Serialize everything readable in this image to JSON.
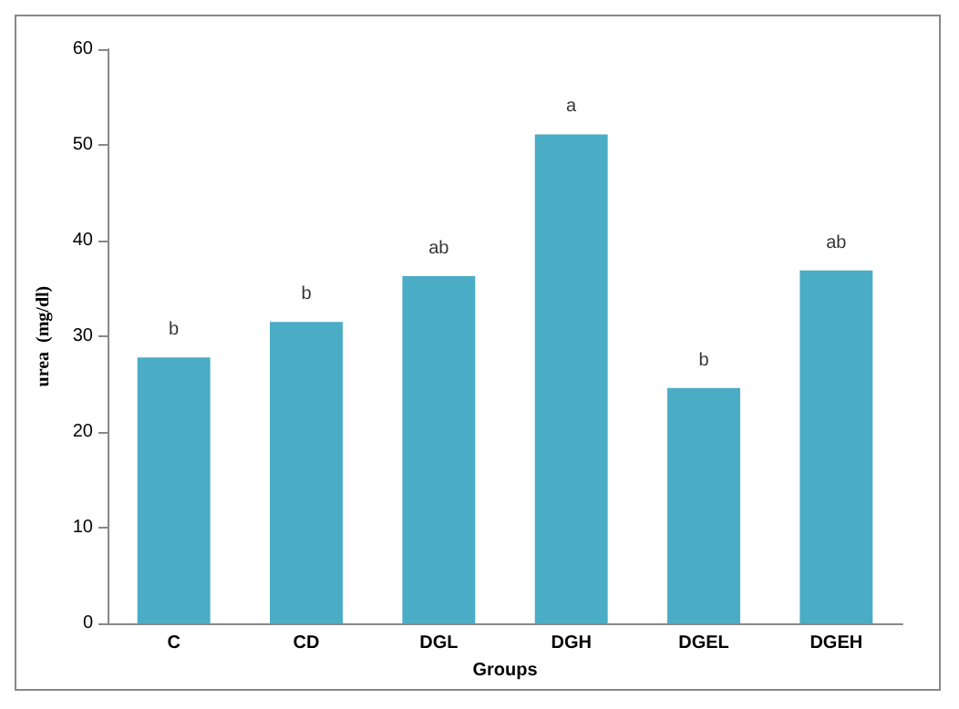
{
  "chart_data": {
    "type": "bar",
    "xlabel": "Groups",
    "ylabel": "urea  (mg/dl)",
    "categories": [
      "C",
      "CD",
      "DGL",
      "DGH",
      "DGEL",
      "DGEH"
    ],
    "values": [
      27.8,
      31.5,
      36.3,
      51.1,
      24.6,
      36.9
    ],
    "color": "#4bacc6",
    "ylim": [
      0,
      60
    ],
    "yticks": [
      0,
      10,
      20,
      30,
      40,
      50,
      60
    ],
    "grid": false,
    "annotations": [
      {
        "text": "b",
        "x": "C",
        "y": 27.8
      },
      {
        "text": "b",
        "x": "CD",
        "y": 31.5
      },
      {
        "text": "ab",
        "x": "DGL",
        "y": 36.3
      },
      {
        "text": "a",
        "x": "DGH",
        "y": 51.1
      },
      {
        "text": "b",
        "x": "DGEL",
        "y": 24.6
      },
      {
        "text": "ab",
        "x": "DGEH",
        "y": 36.9
      }
    ]
  }
}
